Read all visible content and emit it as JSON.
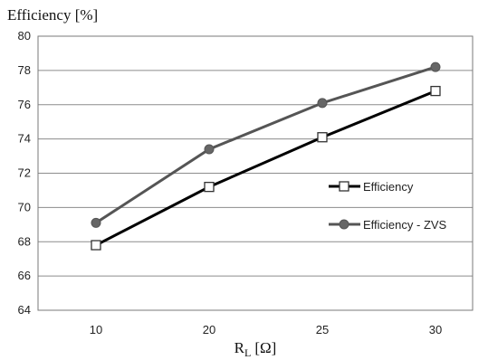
{
  "chart_data": {
    "type": "line",
    "ylabel": "Efficiency [%]",
    "xlabel": {
      "main": "R",
      "sub": "L",
      "unit": "[Ω]"
    },
    "categories": [
      "10",
      "20",
      "25",
      "30"
    ],
    "ylim": [
      64,
      80
    ],
    "yticks": [
      64,
      66,
      68,
      70,
      72,
      74,
      76,
      78,
      80
    ],
    "grid": {
      "horizontal": true,
      "vertical": false
    },
    "legend_position": "right",
    "series": [
      {
        "name": "Efficiency",
        "values": [
          67.8,
          71.2,
          74.1,
          76.8
        ],
        "color": "#000000",
        "marker": "open-square"
      },
      {
        "name": "Efficiency - ZVS",
        "values": [
          69.1,
          73.4,
          76.1,
          78.2
        ],
        "color": "#555555",
        "marker": "filled-circle"
      }
    ]
  }
}
